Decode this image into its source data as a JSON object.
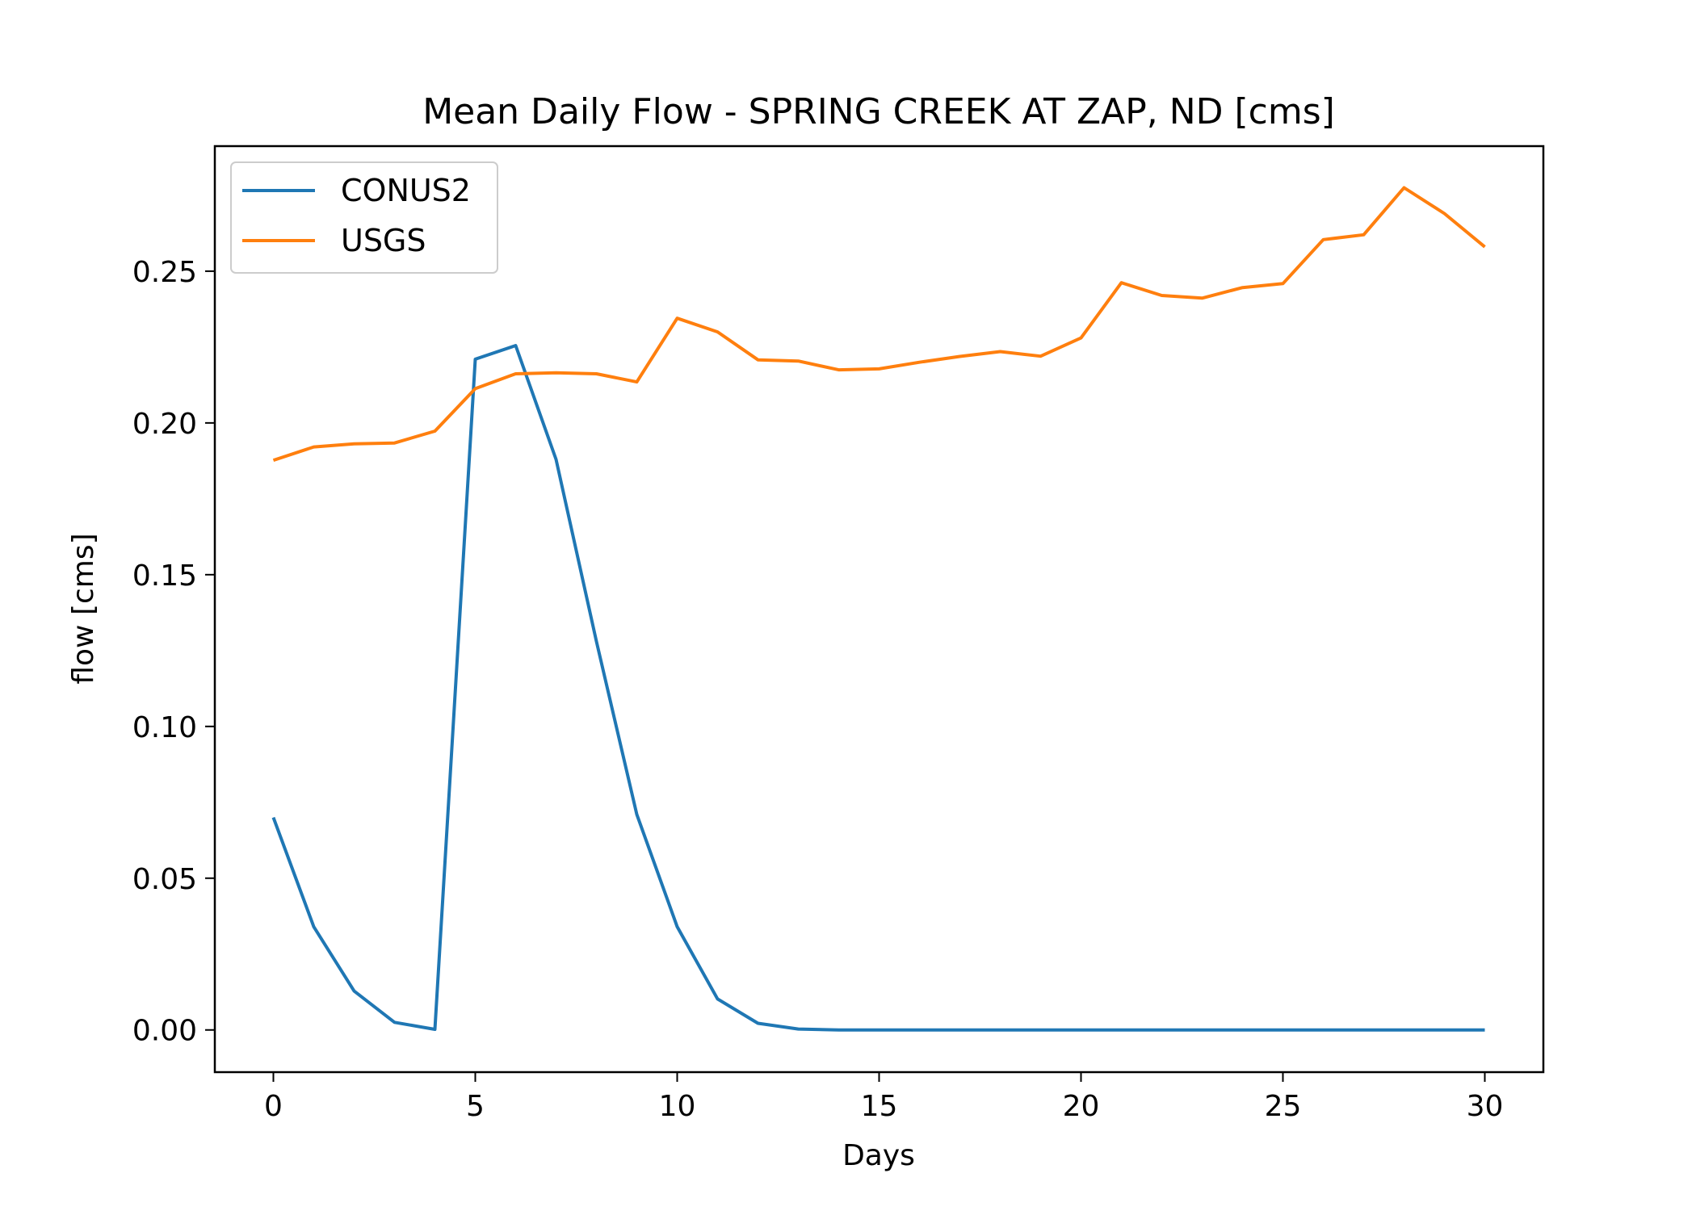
{
  "chart_data": {
    "type": "line",
    "title": "Mean Daily Flow - SPRING CREEK AT ZAP, ND [cms]",
    "xlabel": "Days",
    "ylabel": "flow [cms]",
    "xlim": [
      -1.45,
      31.45
    ],
    "ylim": [
      -0.0139,
      0.2912
    ],
    "xticks": [
      0,
      5,
      10,
      15,
      20,
      25,
      30
    ],
    "xtick_labels": [
      "0",
      "5",
      "10",
      "15",
      "20",
      "25",
      "30"
    ],
    "yticks": [
      0.0,
      0.05,
      0.1,
      0.15,
      0.2,
      0.25
    ],
    "ytick_labels": [
      "0.00",
      "0.05",
      "0.10",
      "0.15",
      "0.20",
      "0.25"
    ],
    "grid": false,
    "legend_position": "upper-left",
    "x": [
      0,
      1,
      2,
      3,
      4,
      5,
      6,
      7,
      8,
      9,
      10,
      11,
      12,
      13,
      14,
      15,
      16,
      17,
      18,
      19,
      20,
      21,
      22,
      23,
      24,
      25,
      26,
      27,
      28,
      29,
      30
    ],
    "series": [
      {
        "name": "CONUS2",
        "color": "#1f77b4",
        "values": [
          0.07,
          0.034,
          0.0128,
          0.0025,
          0.0002,
          0.221,
          0.2255,
          0.188,
          0.128,
          0.071,
          0.034,
          0.0102,
          0.0022,
          0.0003,
          0.0,
          0.0,
          0.0,
          0.0,
          0.0,
          0.0,
          0.0,
          0.0,
          0.0,
          0.0,
          0.0,
          0.0,
          0.0,
          0.0,
          0.0,
          0.0,
          0.0
        ]
      },
      {
        "name": "USGS",
        "color": "#ff7f0e",
        "values": [
          0.1877,
          0.1921,
          0.1931,
          0.1934,
          0.1973,
          0.2113,
          0.2162,
          0.2165,
          0.2162,
          0.2135,
          0.2345,
          0.23,
          0.2208,
          0.2204,
          0.2175,
          0.2178,
          0.22,
          0.2219,
          0.2235,
          0.222,
          0.228,
          0.2462,
          0.242,
          0.2411,
          0.2446,
          0.2459,
          0.2604,
          0.262,
          0.2775,
          0.269,
          0.258
        ]
      }
    ]
  }
}
